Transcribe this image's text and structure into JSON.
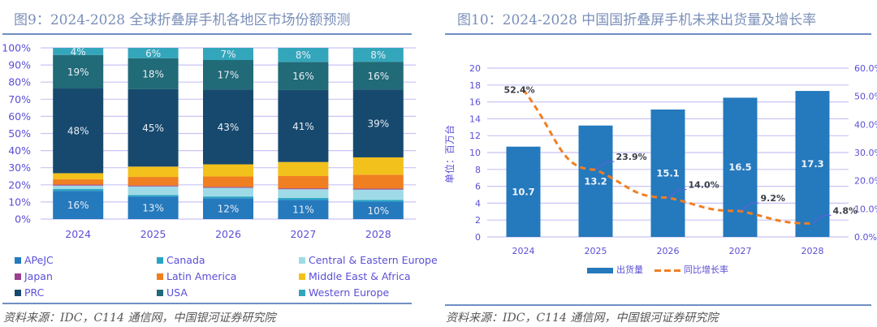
{
  "left": {
    "title": "图9：2024-2028 全球折叠屏手机各地区市场份额预测",
    "source": "资料来源：IDC，C114 通信网，中国银河证券研究院"
  },
  "right": {
    "title": "图10：2024-2028 中国国折叠屏手机未来出货量及增长率",
    "source": "资料来源：IDC，C114 通信网，中国银河证券研究院"
  },
  "chart_data": [
    {
      "type": "bar",
      "stacked": true,
      "title": "2024-2028 全球折叠屏手机各地区市场份额预测",
      "categories": [
        "2024",
        "2025",
        "2026",
        "2027",
        "2028"
      ],
      "ylim": [
        0,
        100
      ],
      "yticks": [
        "0%",
        "10%",
        "20%",
        "30%",
        "40%",
        "50%",
        "60%",
        "70%",
        "80%",
        "90%",
        "100%"
      ],
      "grid": true,
      "legend_position": "bottom",
      "series": [
        {
          "name": "APeJC",
          "color": "#2579bd",
          "values": [
            16,
            13,
            12,
            11,
            10
          ],
          "labels": [
            "16%",
            "13%",
            "12%",
            "11%",
            "10%"
          ]
        },
        {
          "name": "Canada",
          "color": "#29a3c4",
          "values": [
            1,
            1,
            1,
            1,
            1
          ],
          "labels": []
        },
        {
          "name": "Central & Eastern Europe",
          "color": "#9fdbe6",
          "values": [
            2,
            5,
            5,
            5,
            6
          ],
          "labels": []
        },
        {
          "name": "Japan",
          "color": "#9b3f8f",
          "values": [
            0.5,
            0.5,
            0.5,
            0.5,
            0.5
          ],
          "labels": []
        },
        {
          "name": "Latin America",
          "color": "#f07f22",
          "values": [
            3,
            5,
            6,
            7,
            8
          ],
          "labels": []
        },
        {
          "name": "Middle East & Africa",
          "color": "#f3c11c",
          "values": [
            3.5,
            6,
            7,
            8,
            10
          ],
          "labels": []
        },
        {
          "name": "PRC",
          "color": "#17496e",
          "values": [
            48,
            45,
            43,
            41,
            39
          ],
          "labels": [
            "48%",
            "45%",
            "43%",
            "41%",
            "39%"
          ]
        },
        {
          "name": "USA",
          "color": "#216a77",
          "values": [
            19,
            18,
            17,
            16,
            16
          ],
          "labels": [
            "19%",
            "18%",
            "17%",
            "16%",
            "16%"
          ]
        },
        {
          "name": "Western Europe",
          "color": "#33a6bb",
          "values": [
            4,
            6,
            7,
            8,
            8
          ],
          "labels": [
            "4%",
            "6%",
            "7%",
            "8%",
            "8%"
          ]
        }
      ]
    },
    {
      "type": "bar",
      "title": "2024-2028 中国国折叠屏手机未来出货量及增长率",
      "categories": [
        "2024",
        "2025",
        "2026",
        "2027",
        "2028"
      ],
      "ylabel": "单位：百万台",
      "ylim": [
        0,
        20
      ],
      "yticks": [
        "0",
        "2",
        "4",
        "6",
        "8",
        "10",
        "12",
        "14",
        "16",
        "18",
        "20"
      ],
      "y2lim": [
        0,
        60
      ],
      "y2ticks": [
        "0.0%",
        "10.0%",
        "20.0%",
        "30.0%",
        "40.0%",
        "50.0%",
        "60.0%"
      ],
      "grid": true,
      "legend_position": "bottom",
      "series": [
        {
          "name": "出货量",
          "kind": "bar",
          "axis": "left",
          "color": "#2579bd",
          "values": [
            10.7,
            13.2,
            15.1,
            16.5,
            17.3
          ],
          "labels": [
            "10.7",
            "13.2",
            "15.1",
            "16.5",
            "17.3"
          ]
        },
        {
          "name": "同比增长率",
          "kind": "line",
          "style": "dashed",
          "axis": "right",
          "color": "#f07f22",
          "values": [
            52.4,
            23.9,
            14.0,
            9.2,
            4.8
          ],
          "labels": [
            "52.4%",
            "23.9%",
            "14.0%",
            "9.2%",
            "4.8%"
          ]
        }
      ]
    }
  ]
}
